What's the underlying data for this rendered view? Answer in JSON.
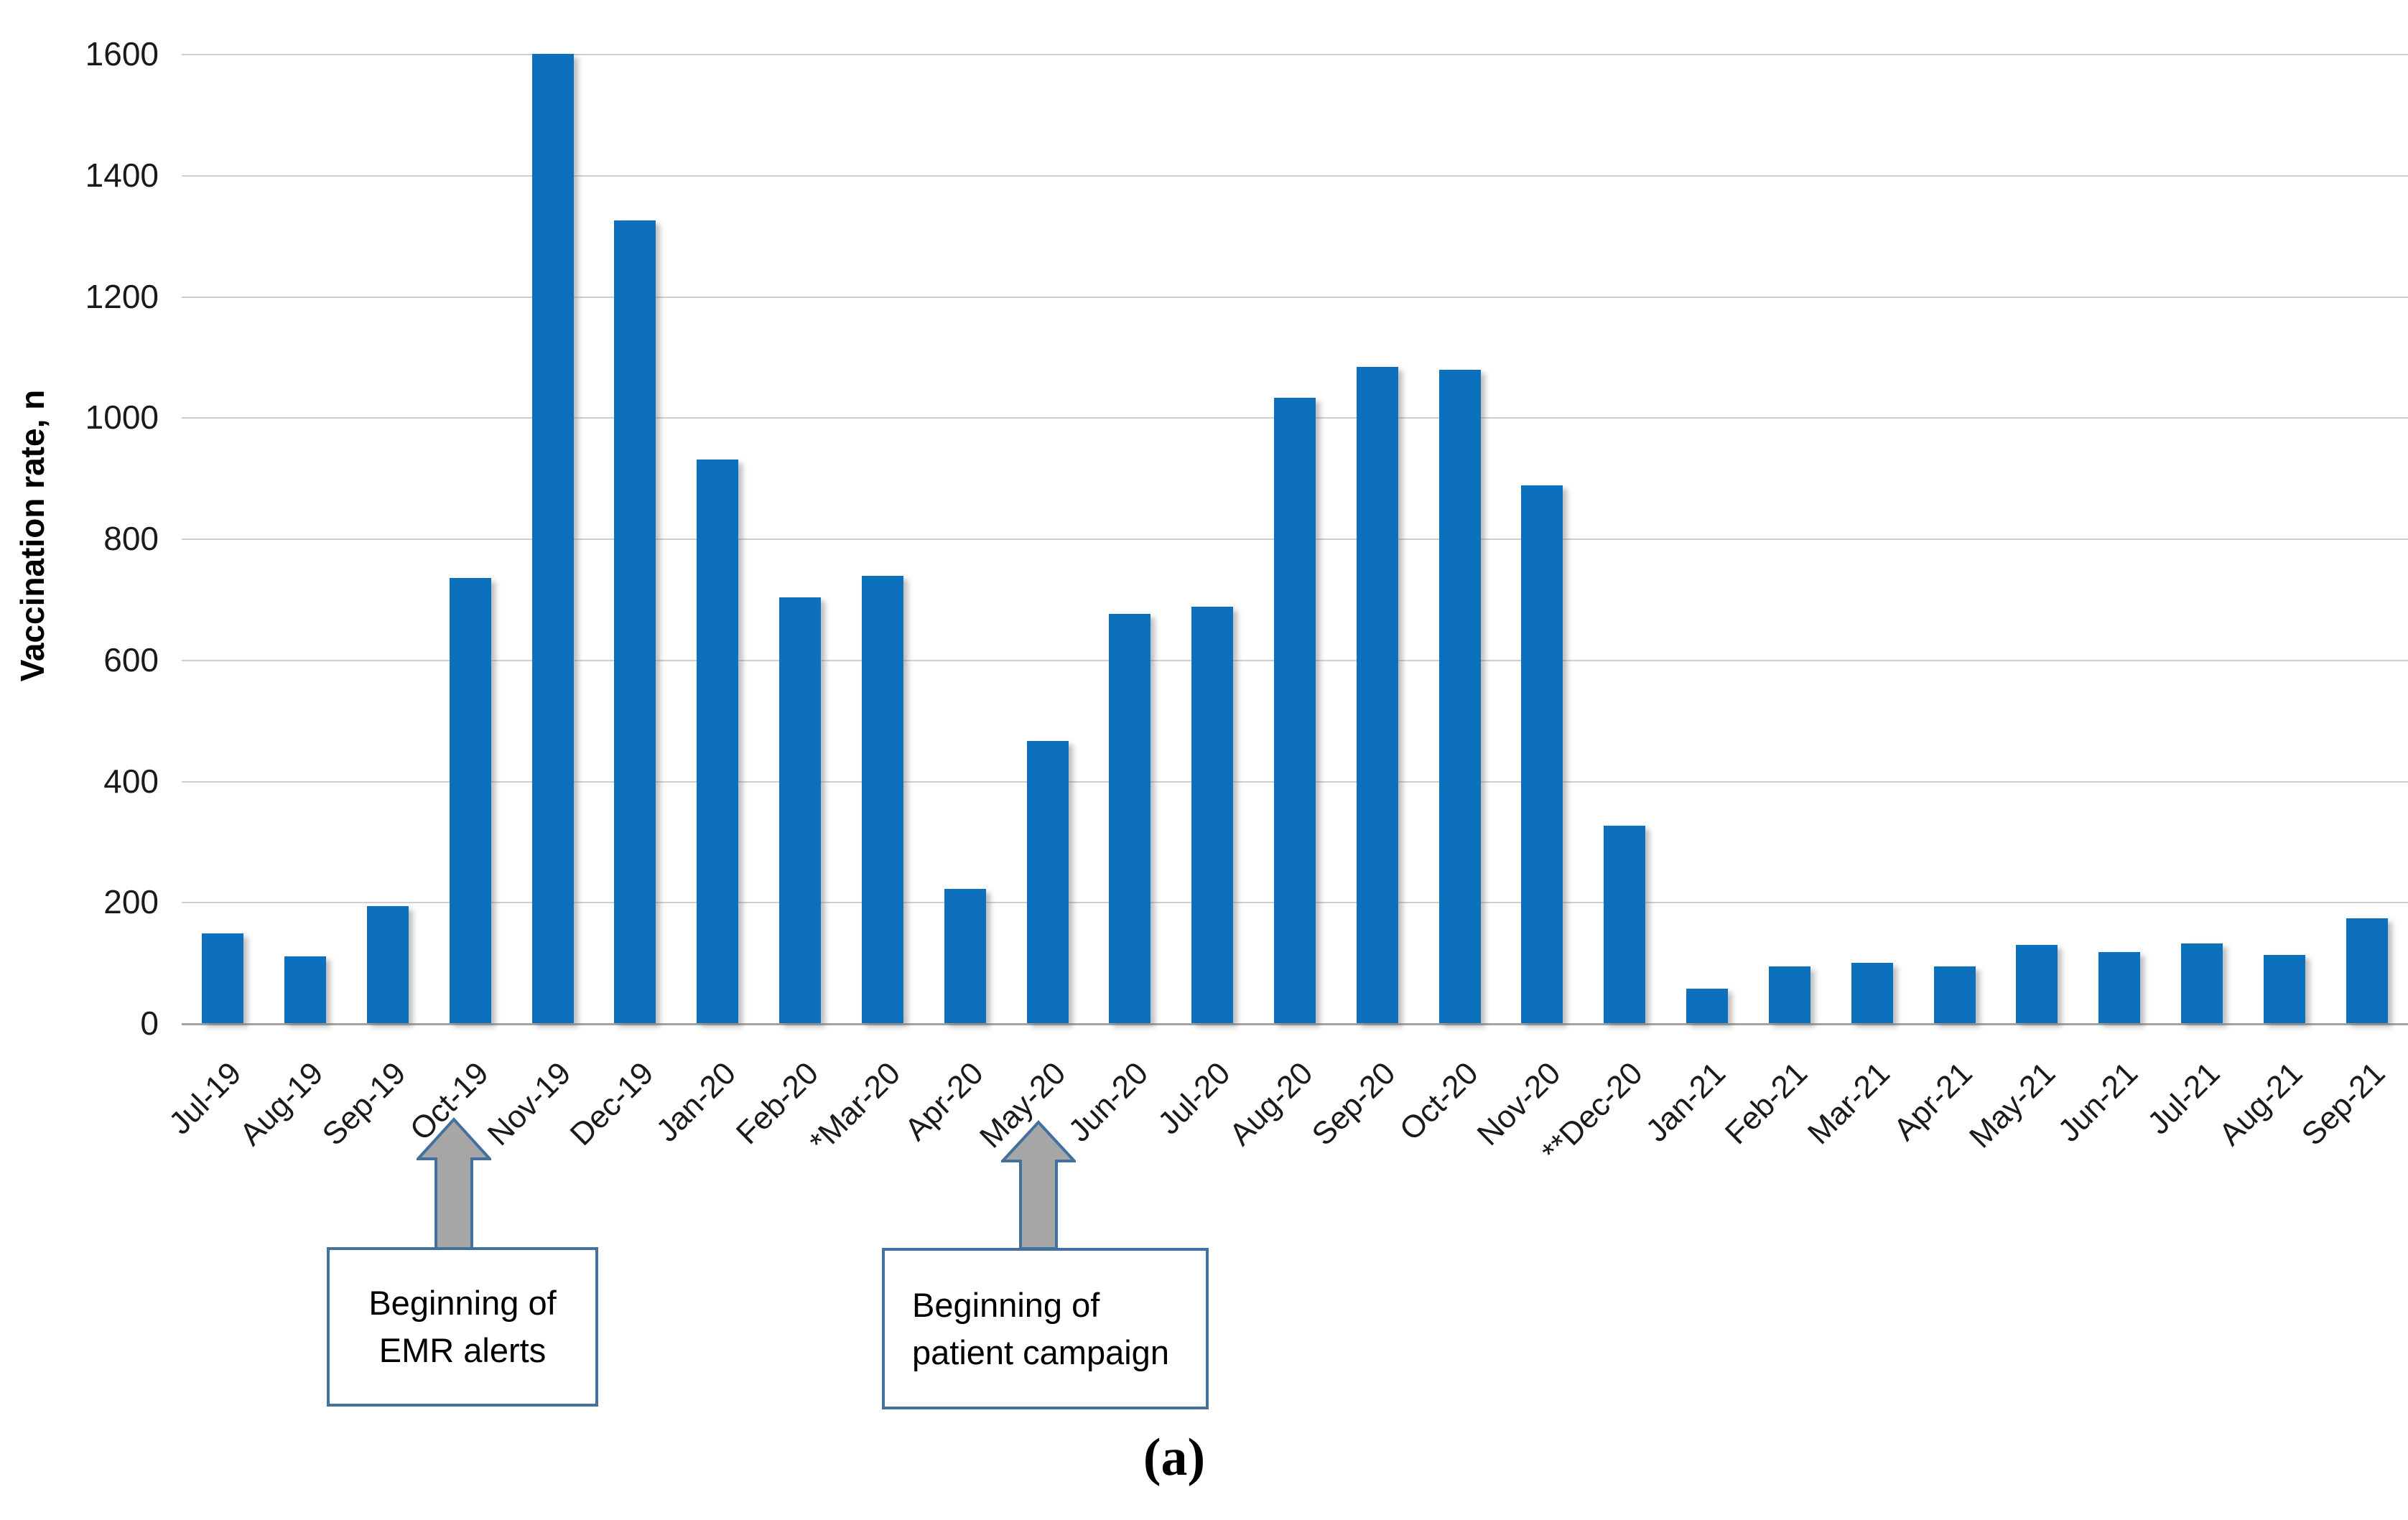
{
  "figure": {
    "caption": "(a)",
    "annotations": [
      {
        "text": "Beginning of EMR alerts",
        "points_to": "Oct-19"
      },
      {
        "text": "Beginning of patient campaign",
        "points_to": "May-20"
      }
    ]
  },
  "chart_data": {
    "type": "bar",
    "title": "",
    "xlabel": "",
    "ylabel": "Vaccination rate, n",
    "ylim": [
      0,
      1600
    ],
    "yticks": [
      0,
      200,
      400,
      600,
      800,
      1000,
      1200,
      1400,
      1600
    ],
    "grid": true,
    "legend_position": "none",
    "bar_color": "#0d70bd",
    "categories": [
      "Jul-19",
      "Aug-19",
      "Sep-19",
      "Oct-19",
      "Nov-19",
      "Dec-19",
      "Jan-20",
      "Feb-20",
      "*Mar-20",
      "Apr-20",
      "May-20",
      "Jun-20",
      "Jul-20",
      "Aug-20",
      "Sep-20",
      "Oct-20",
      "Nov-20",
      "**Dec-20",
      "Jan-21",
      "Feb-21",
      "Mar-21",
      "Apr-21",
      "May-21",
      "Jun-21",
      "Jul-21",
      "Aug-21",
      "Sep-21"
    ],
    "values": [
      148,
      110,
      193,
      735,
      1600,
      1325,
      930,
      703,
      738,
      222,
      466,
      676,
      688,
      1032,
      1083,
      1079,
      888,
      326,
      57,
      94,
      99,
      94,
      129,
      117,
      132,
      113,
      173
    ]
  }
}
